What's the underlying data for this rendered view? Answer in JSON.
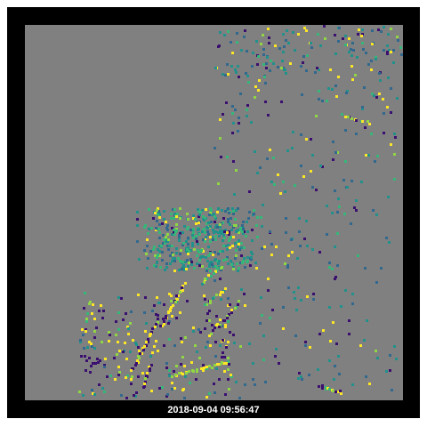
{
  "timestamp": "2018-09-04 09:56:47",
  "background_color": "#808080",
  "frame_color": "#000000",
  "palette": [
    "#3b0f6f",
    "#31688e",
    "#21918c",
    "#35b779",
    "#90d743",
    "#fde725"
  ]
}
